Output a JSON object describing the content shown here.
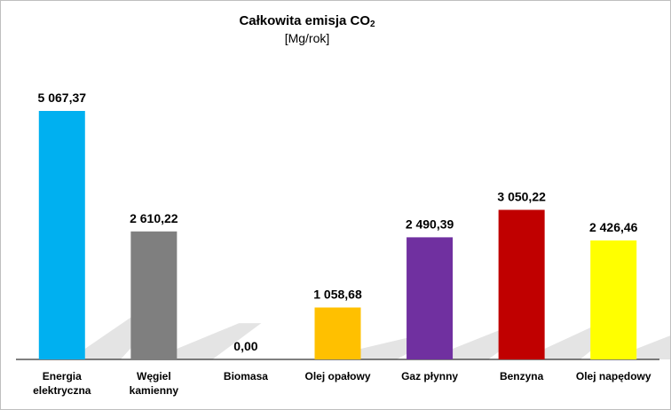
{
  "chart_data": {
    "type": "bar",
    "title": "Całkowita emisja CO",
    "title_subscript": "2",
    "subtitle": "[Mg/rok]",
    "categories": [
      [
        "Energia",
        "elektryczna"
      ],
      [
        "Węgiel",
        "kamienny"
      ],
      [
        "Biomasa"
      ],
      [
        "Olej opałowy"
      ],
      [
        "Gaz płynny"
      ],
      [
        "Benzyna"
      ],
      [
        "Olej napędowy"
      ]
    ],
    "values": [
      5067.37,
      2610.22,
      0.0,
      1058.68,
      2490.39,
      3050.22,
      2426.46
    ],
    "value_labels": [
      "5 067,37",
      "2 610,22",
      "0,00",
      "1 058,68",
      "2 490,39",
      "3 050,22",
      "2 426,46"
    ],
    "colors": [
      "#00B0F0",
      "#7F7F7F",
      "#A5A5A5",
      "#FFC000",
      "#7030A0",
      "#C00000",
      "#FFFF00"
    ],
    "ylim": [
      0,
      5500
    ],
    "grid": false,
    "legend": "none"
  }
}
